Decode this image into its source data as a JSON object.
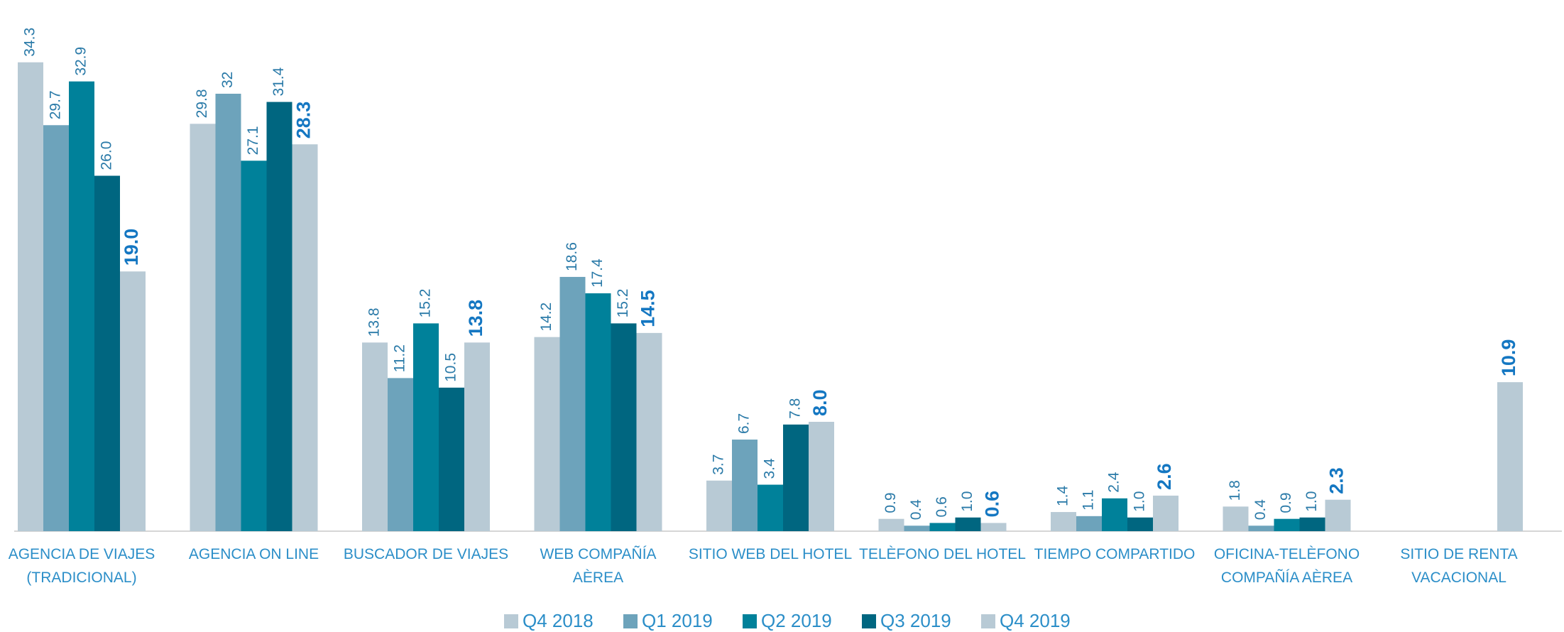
{
  "chart_data": {
    "type": "bar",
    "categories": [
      "AGENCIA DE VIAJES (TRADICIONAL)",
      "AGENCIA ON LINE",
      "BUSCADOR DE VIAJES",
      "WEB COMPAÑÍA AÈREA",
      "SITIO WEB DEL HOTEL",
      "TELÈFONO DEL HOTEL",
      "TIEMPO COMPARTIDO",
      "OFICINA-TELÈFONO COMPAÑÍA AÈREA",
      "SITIO DE RENTA VACACIONAL"
    ],
    "series": [
      {
        "name": "Q4 2018",
        "color": "#b8cad5",
        "values": [
          34.3,
          29.8,
          13.8,
          14.2,
          3.7,
          0.9,
          1.4,
          1.8,
          null
        ],
        "value_labels": [
          "34.3",
          "29.8",
          "13.8",
          "14.2",
          "3.7",
          "0.9",
          "1.4",
          "1.8",
          null
        ]
      },
      {
        "name": "Q1 2019",
        "color": "#6da3bb",
        "values": [
          29.7,
          32,
          11.2,
          18.6,
          6.7,
          0.4,
          1.1,
          0.4,
          null
        ],
        "value_labels": [
          "29.7",
          "32",
          "11.2",
          "18.6",
          "6.7",
          "0.4",
          "1.1",
          "0.4",
          null
        ]
      },
      {
        "name": "Q2 2019",
        "color": "#00819a",
        "values": [
          32.9,
          27.1,
          15.2,
          17.4,
          3.4,
          0.6,
          2.4,
          0.9,
          null
        ],
        "value_labels": [
          "32.9",
          "27.1",
          "15.2",
          "17.4",
          "3.4",
          "0.6",
          "2.4",
          "0.9",
          null
        ]
      },
      {
        "name": "Q3 2019",
        "color": "#006680",
        "values": [
          26.0,
          31.4,
          10.5,
          15.2,
          7.8,
          1.0,
          1.0,
          1.0,
          null
        ],
        "value_labels": [
          "26.0",
          "31.4",
          "10.5",
          "15.2",
          "7.8",
          "1.0",
          "1.0",
          "1.0",
          null
        ]
      },
      {
        "name": "Q4 2019",
        "color": "#b8cad5",
        "values": [
          19.0,
          28.3,
          13.8,
          14.5,
          8.0,
          0.6,
          2.6,
          2.3,
          10.9
        ],
        "value_labels": [
          "19.0",
          "28.3",
          "13.8",
          "14.5",
          "8.0",
          "0.6",
          "2.6",
          "2.3",
          "10.9"
        ]
      }
    ],
    "legend": "bottom"
  }
}
